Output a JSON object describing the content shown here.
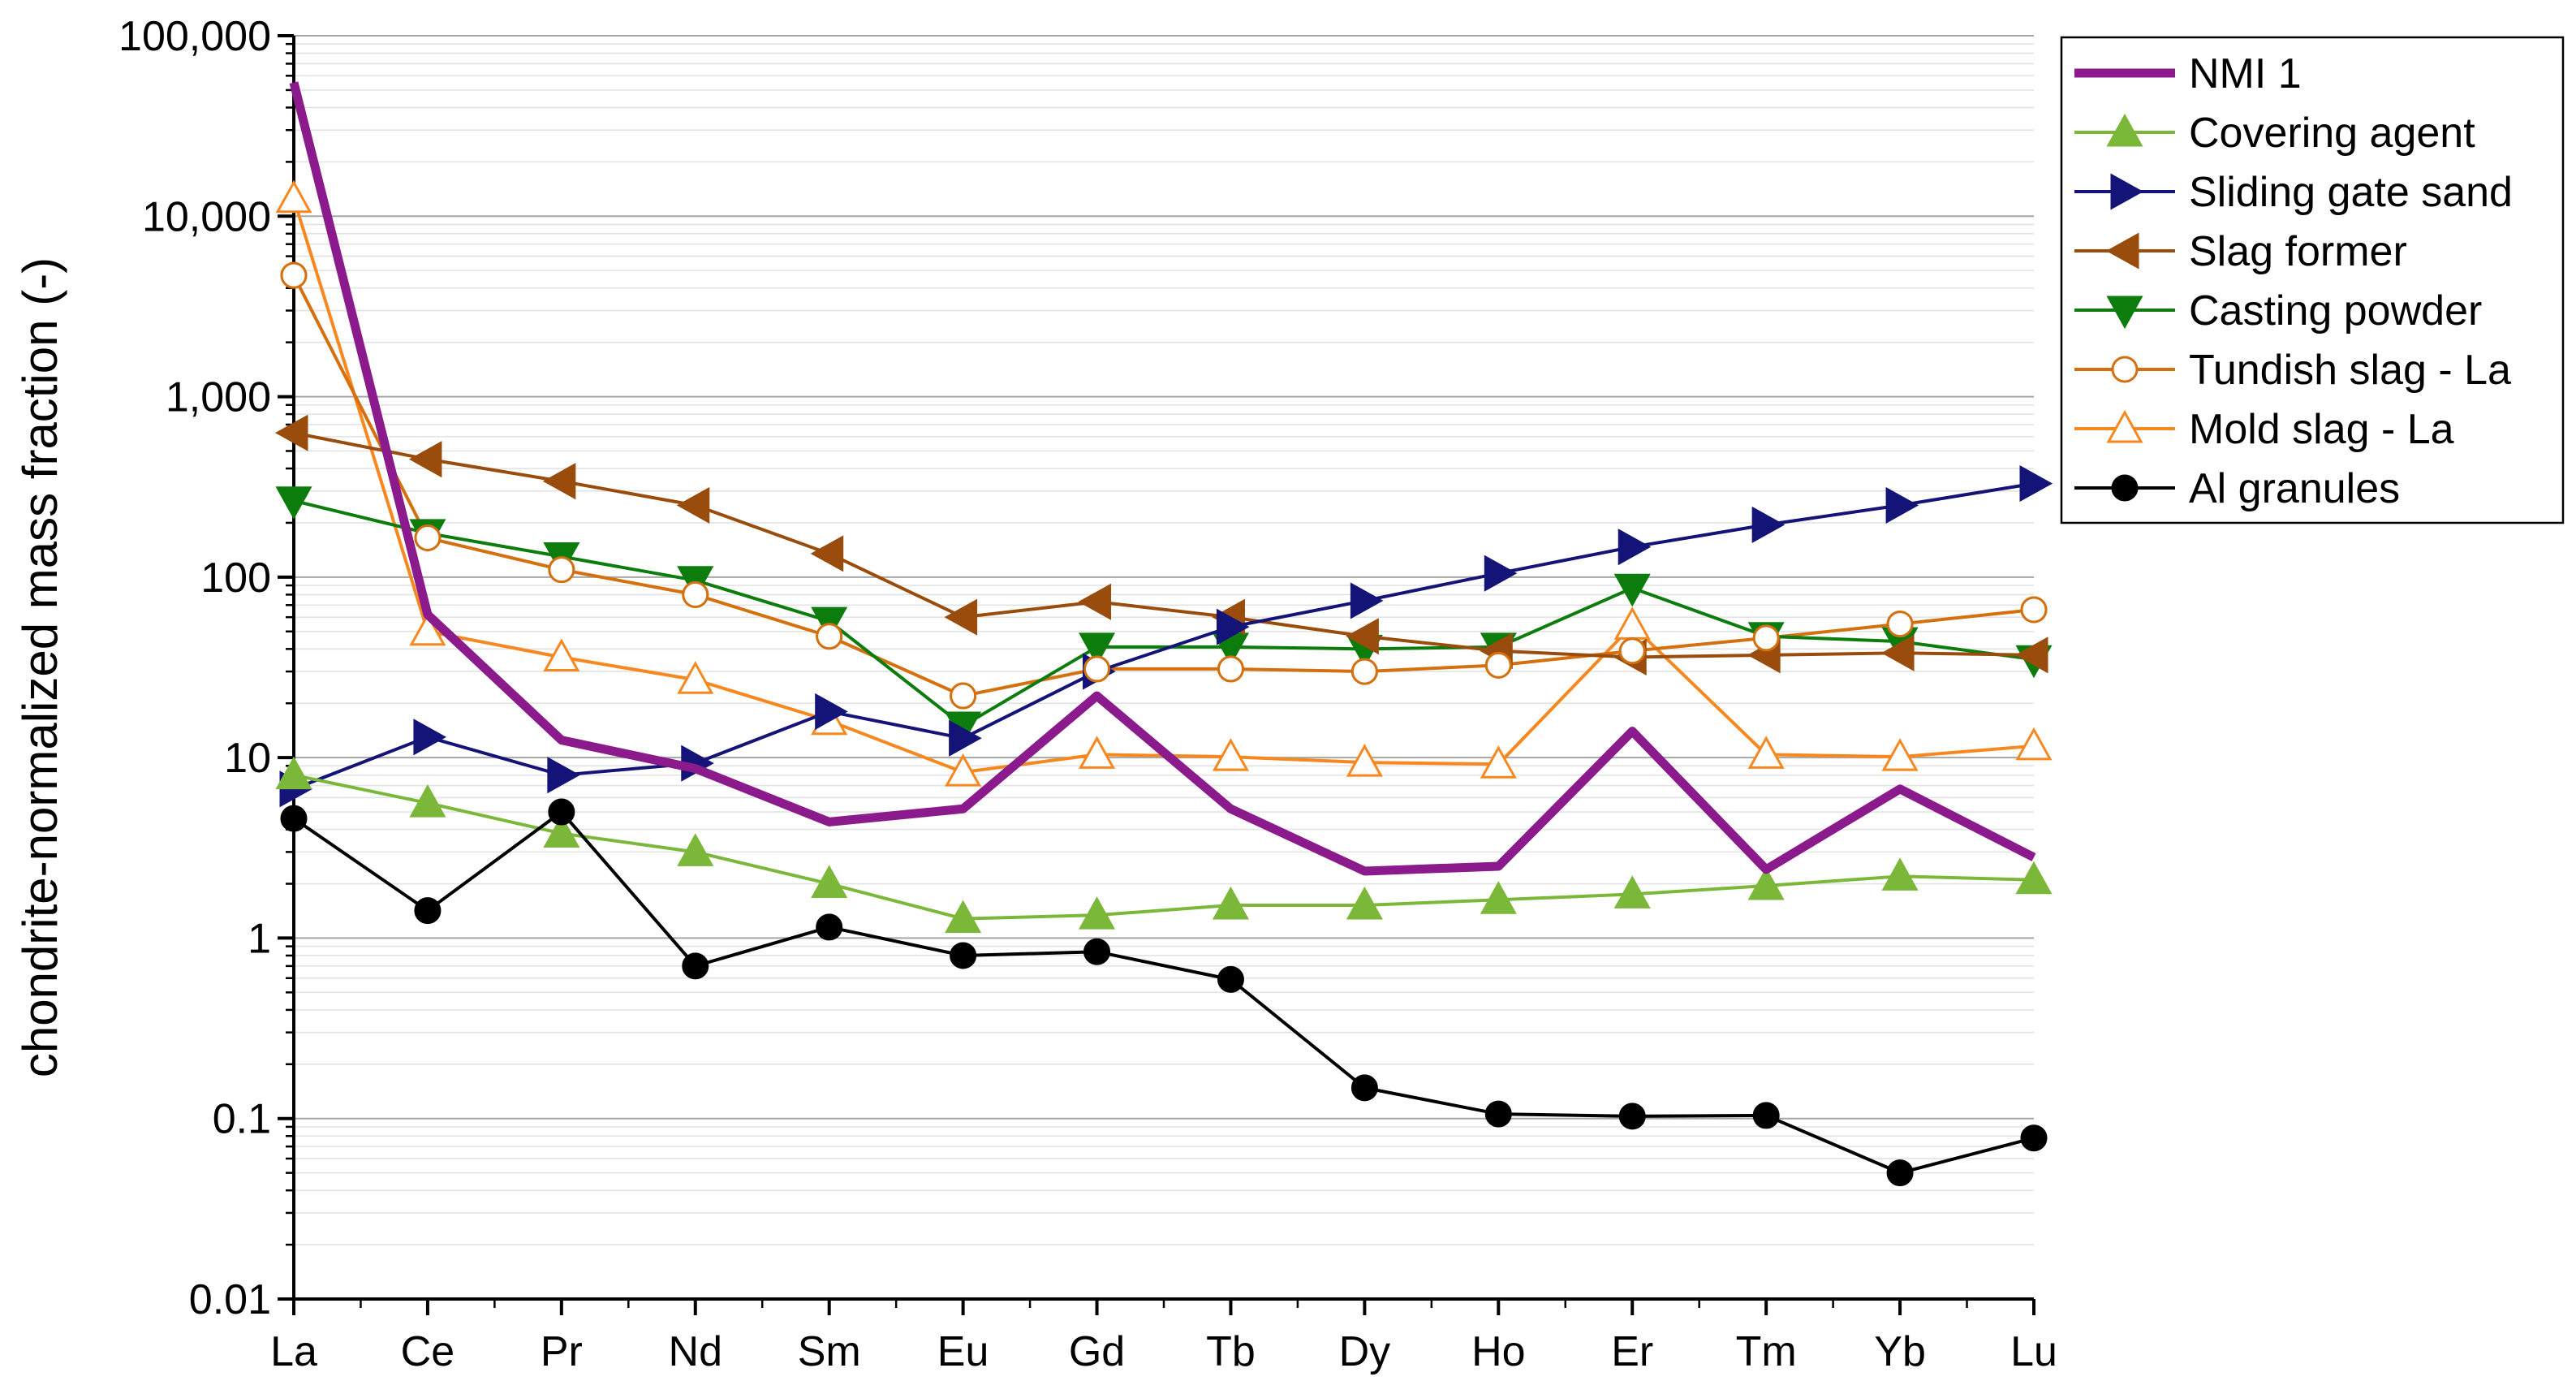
{
  "chart_data": {
    "type": "line",
    "title": "",
    "xlabel": "",
    "ylabel": "chondrite-normalized mass fraction (-)",
    "yscale": "log",
    "ylim": [
      0.01,
      100000
    ],
    "yticks": [
      {
        "value": 0.01,
        "label": "0.01"
      },
      {
        "value": 0.1,
        "label": "0.1"
      },
      {
        "value": 1,
        "label": "1"
      },
      {
        "value": 10,
        "label": "10"
      },
      {
        "value": 100,
        "label": "100"
      },
      {
        "value": 1000,
        "label": "1,000"
      },
      {
        "value": 10000,
        "label": "10,000"
      },
      {
        "value": 100000,
        "label": "100,000"
      }
    ],
    "grid": true,
    "legend_position": "top-right",
    "categories": [
      "La",
      "Ce",
      "Pr",
      "Nd",
      "Sm",
      "Eu",
      "Gd",
      "Tb",
      "Dy",
      "Ho",
      "Er",
      "Tm",
      "Yb",
      "Lu"
    ],
    "series": [
      {
        "name": "Mold slag - La",
        "color": "#f7881f",
        "marker": "triangle-up-open",
        "line_width": "thin",
        "values": [
          null,
          50,
          36,
          27,
          16,
          8.3,
          10.4,
          10.1,
          9.4,
          9.2,
          54,
          10.4,
          10.1,
          11.6
        ]
      },
      {
        "name": "Tundish slag - La",
        "color": "#d4700e",
        "marker": "circle-open",
        "line_width": "thin",
        "values": [
          4700,
          165,
          110,
          80,
          47,
          22,
          31,
          31,
          30,
          32.5,
          39,
          46,
          55,
          66
        ]
      },
      {
        "name": "Casting powder",
        "color": "#0c7d0c",
        "marker": "triangle-down",
        "line_width": "thin",
        "values": [
          265,
          175,
          130,
          96,
          57,
          15,
          41,
          41,
          40,
          41,
          87,
          47,
          44,
          35
        ]
      },
      {
        "name": "Slag former",
        "color": "#994c0c",
        "marker": "triangle-left",
        "line_width": "thin",
        "values": [
          630,
          450,
          340,
          250,
          135,
          60,
          73,
          60,
          47,
          39,
          36,
          37,
          38,
          37
        ]
      },
      {
        "name": "Sliding gate sand",
        "color": "#141478",
        "marker": "triangle-right",
        "line_width": "thin",
        "values": [
          6.7,
          13,
          8,
          9.3,
          18,
          12.8,
          30,
          53,
          74,
          105,
          147,
          195,
          250,
          330
        ]
      },
      {
        "name": "Covering agent",
        "color": "#7bb83a",
        "marker": "triangle-up",
        "line_width": "thin",
        "values": [
          8,
          5.6,
          3.8,
          3,
          2,
          1.28,
          1.34,
          1.52,
          1.52,
          1.63,
          1.75,
          1.95,
          2.2,
          2.1
        ]
      },
      {
        "name": "Al granules",
        "color": "#000000",
        "marker": "circle",
        "line_width": "thin",
        "values": [
          4.6,
          1.42,
          5,
          0.7,
          1.15,
          0.8,
          0.84,
          0.59,
          0.148,
          0.106,
          0.103,
          0.104,
          0.05,
          0.078
        ]
      },
      {
        "name": "NMI 1",
        "color": "#8b1a8c",
        "marker": "none",
        "line_width": "thick",
        "values": [
          55000,
          62,
          12.5,
          8.7,
          4.4,
          5.2,
          22,
          5.2,
          2.35,
          2.5,
          14,
          2.4,
          6.7,
          2.8
        ]
      },
      {
        "name": "Tundish slag - La",
        "color": "#d4700e",
        "marker": "circle-open",
        "line_width": "thin",
        "marks_only": true,
        "values": [
          4700,
          165,
          110,
          80,
          47,
          22,
          31,
          31,
          30,
          32.5,
          39,
          46,
          55,
          66
        ]
      },
      {
        "name": "Mold slag - La",
        "color": "#f7881f",
        "marker": "triangle-up-open",
        "line_width": "thin",
        "marks_only": true,
        "values": [
          12500,
          null,
          null,
          null,
          null,
          null,
          null,
          null,
          null,
          null,
          null,
          null,
          null,
          null
        ]
      }
    ],
    "extra_segments": [
      {
        "series": "Mold slag - La",
        "from_category": "La",
        "to_category": "Ce",
        "from_value": 12500,
        "to_value": 50
      }
    ],
    "legend": [
      {
        "name": "NMI 1",
        "color": "#8b1a8c",
        "marker": "none",
        "line_width": "thick"
      },
      {
        "name": "Covering agent",
        "color": "#7bb83a",
        "marker": "triangle-up",
        "line_width": "thin"
      },
      {
        "name": "Sliding gate sand",
        "color": "#141478",
        "marker": "triangle-right",
        "line_width": "thin"
      },
      {
        "name": "Slag former",
        "color": "#994c0c",
        "marker": "triangle-left",
        "line_width": "thin"
      },
      {
        "name": "Casting powder",
        "color": "#0c7d0c",
        "marker": "triangle-down",
        "line_width": "thin"
      },
      {
        "name": "Tundish slag - La",
        "color": "#d4700e",
        "marker": "circle-open",
        "line_width": "thin"
      },
      {
        "name": "Mold slag - La",
        "color": "#f7881f",
        "marker": "triangle-up-open",
        "line_width": "thin"
      },
      {
        "name": "Al granules",
        "color": "#000000",
        "marker": "circle",
        "line_width": "thin"
      }
    ]
  }
}
